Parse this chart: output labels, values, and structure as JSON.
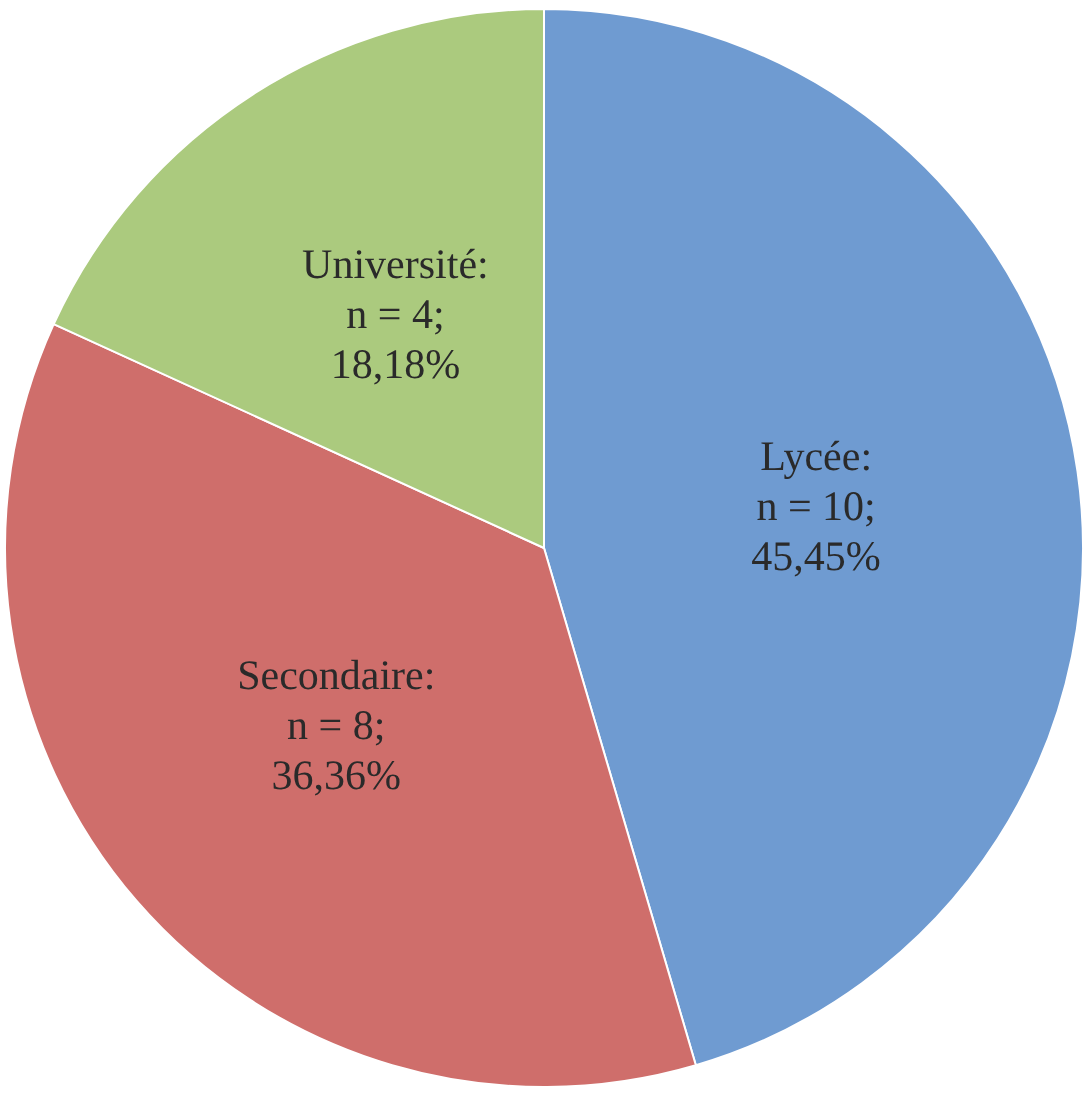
{
  "chart_data": {
    "type": "pie",
    "categories": [
      "Lycée",
      "Secondaire",
      "Université"
    ],
    "values": [
      10,
      8,
      4
    ],
    "colors": [
      "#6f9bd1",
      "#cf6e6b",
      "#abca7e"
    ],
    "value_labels": [
      ":\nn = 10;\n45,45%",
      ":\nn = 8;\n36,36%",
      ":\nn = 4;\n18,18%"
    ],
    "legend": false
  }
}
